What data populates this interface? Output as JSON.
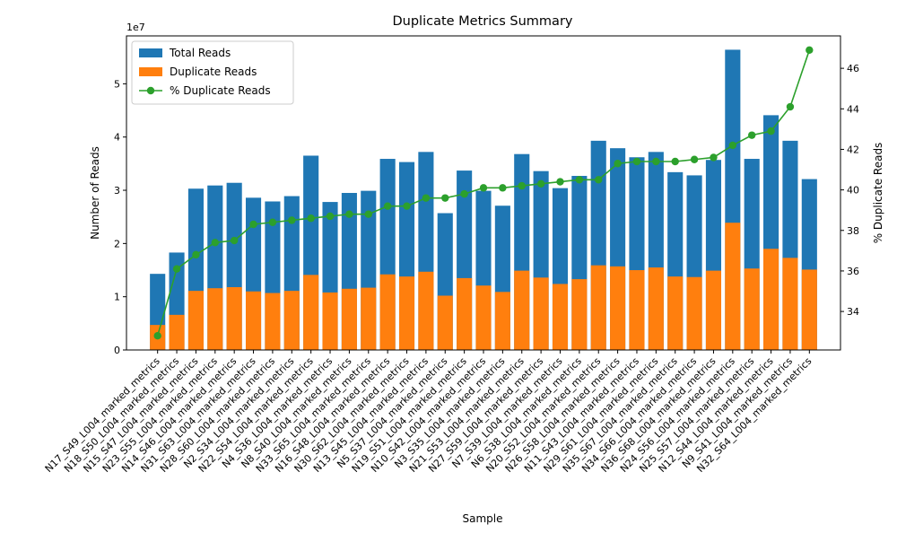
{
  "chart_data": {
    "type": "bar",
    "title": "Duplicate Metrics Summary",
    "xlabel": "Sample",
    "ylabel": "Number of Reads",
    "ylabel_right": "% Duplicate Reads",
    "y_scale_label": "1e7",
    "ylim": [
      0,
      5.9
    ],
    "ylim_right": [
      32.1,
      47.6
    ],
    "yticks": [
      0,
      1,
      2,
      3,
      4,
      5
    ],
    "yticks_right": [
      34,
      36,
      38,
      40,
      42,
      44,
      46
    ],
    "legend_position": "top-left",
    "grid": false,
    "categories": [
      "N17_S49_L004_marked_metrics",
      "N18_S50_L004_marked_metrics",
      "N15_S47_L004_marked_metrics",
      "N23_S55_L004_marked_metrics",
      "N14_S46_L004_marked_metrics",
      "N31_S63_L004_marked_metrics",
      "N28_S60_L004_marked_metrics",
      "N2_S34_L004_marked_metrics",
      "N22_S54_L004_marked_metrics",
      "N4_S36_L004_marked_metrics",
      "N8_S40_L004_marked_metrics",
      "N33_S65_L004_marked_metrics",
      "N16_S48_L004_marked_metrics",
      "N30_S62_L004_marked_metrics",
      "N13_S45_L004_marked_metrics",
      "N5_S37_L004_marked_metrics",
      "N19_S51_L004_marked_metrics",
      "N10_S42_L004_marked_metrics",
      "N3_S35_L004_marked_metrics",
      "N21_S53_L004_marked_metrics",
      "N27_S59_L004_marked_metrics",
      "N7_S39_L004_marked_metrics",
      "N6_S38_L004_marked_metrics",
      "N20_S52_L004_marked_metrics",
      "N26_S58_L004_marked_metrics",
      "N11_S43_L004_marked_metrics",
      "N29_S61_L004_marked_metrics",
      "N35_S67_L004_marked_metrics",
      "N34_S66_L004_marked_metrics",
      "N36_S68_L004_marked_metrics",
      "N24_S56_L004_marked_metrics",
      "N25_S57_L004_marked_metrics",
      "N12_S44_L004_marked_metrics",
      "N9_S41_L004_marked_metrics",
      "N32_S64_L004_marked_metrics"
    ],
    "series": [
      {
        "name": "Total Reads",
        "kind": "bar",
        "color": "#1f77b4",
        "values": [
          1.43,
          1.83,
          3.03,
          3.09,
          3.14,
          2.86,
          2.79,
          2.89,
          3.65,
          2.78,
          2.95,
          2.99,
          3.59,
          3.53,
          3.72,
          2.57,
          3.37,
          2.99,
          2.71,
          3.68,
          3.36,
          3.04,
          3.27,
          3.93,
          3.79,
          3.62,
          3.72,
          3.34,
          3.28,
          3.57,
          5.64,
          3.59,
          4.41,
          3.93,
          3.21
        ]
      },
      {
        "name": "Duplicate Reads",
        "kind": "bar",
        "color": "#ff7f0e",
        "values": [
          0.47,
          0.66,
          1.11,
          1.16,
          1.18,
          1.1,
          1.07,
          1.11,
          1.41,
          1.08,
          1.15,
          1.17,
          1.42,
          1.38,
          1.47,
          1.02,
          1.35,
          1.21,
          1.09,
          1.49,
          1.36,
          1.24,
          1.33,
          1.59,
          1.57,
          1.5,
          1.55,
          1.38,
          1.37,
          1.49,
          2.39,
          1.53,
          1.9,
          1.73,
          1.51
        ]
      },
      {
        "name": "% Duplicate Reads",
        "kind": "line",
        "axis": "right",
        "color": "#2ca02c",
        "values": [
          32.8,
          36.1,
          36.8,
          37.4,
          37.5,
          38.3,
          38.4,
          38.5,
          38.6,
          38.7,
          38.8,
          38.8,
          39.2,
          39.2,
          39.6,
          39.6,
          39.8,
          40.1,
          40.1,
          40.2,
          40.3,
          40.4,
          40.5,
          40.5,
          41.3,
          41.4,
          41.4,
          41.4,
          41.5,
          41.6,
          42.2,
          42.7,
          42.9,
          44.1,
          46.9
        ]
      }
    ]
  }
}
